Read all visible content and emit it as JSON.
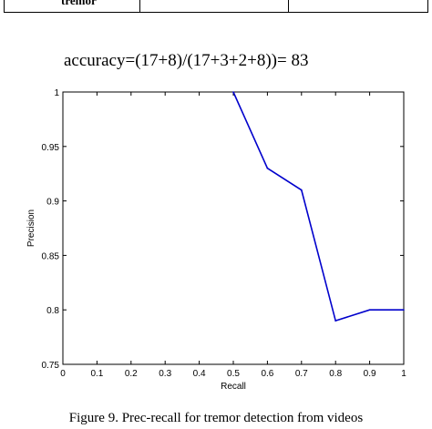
{
  "table_fragment": {
    "cell_text": "tremor"
  },
  "accuracy_line": "accuracy=(17+8)/(17+3+2+8))= 83",
  "caption": "Figure 9.    Prec-recall for tremor detection from videos",
  "chart_data": {
    "type": "line",
    "title": "",
    "xlabel": "Recall",
    "ylabel": "Precision",
    "xlim": [
      0,
      1
    ],
    "ylim": [
      0.75,
      1
    ],
    "x_ticks": [
      "0",
      "0.1",
      "0.2",
      "0.3",
      "0.4",
      "0.5",
      "0.6",
      "0.7",
      "0.8",
      "0.9",
      "1"
    ],
    "y_ticks": [
      "0.75",
      "0.8",
      "0.85",
      "0.9",
      "0.95",
      "1"
    ],
    "grid": false,
    "series": [
      {
        "color": "#0000cc",
        "x": [
          0.5,
          0.6,
          0.7,
          0.8,
          0.9,
          1.0
        ],
        "y": [
          1.0,
          0.93,
          0.91,
          0.79,
          0.8,
          0.8
        ]
      }
    ]
  }
}
